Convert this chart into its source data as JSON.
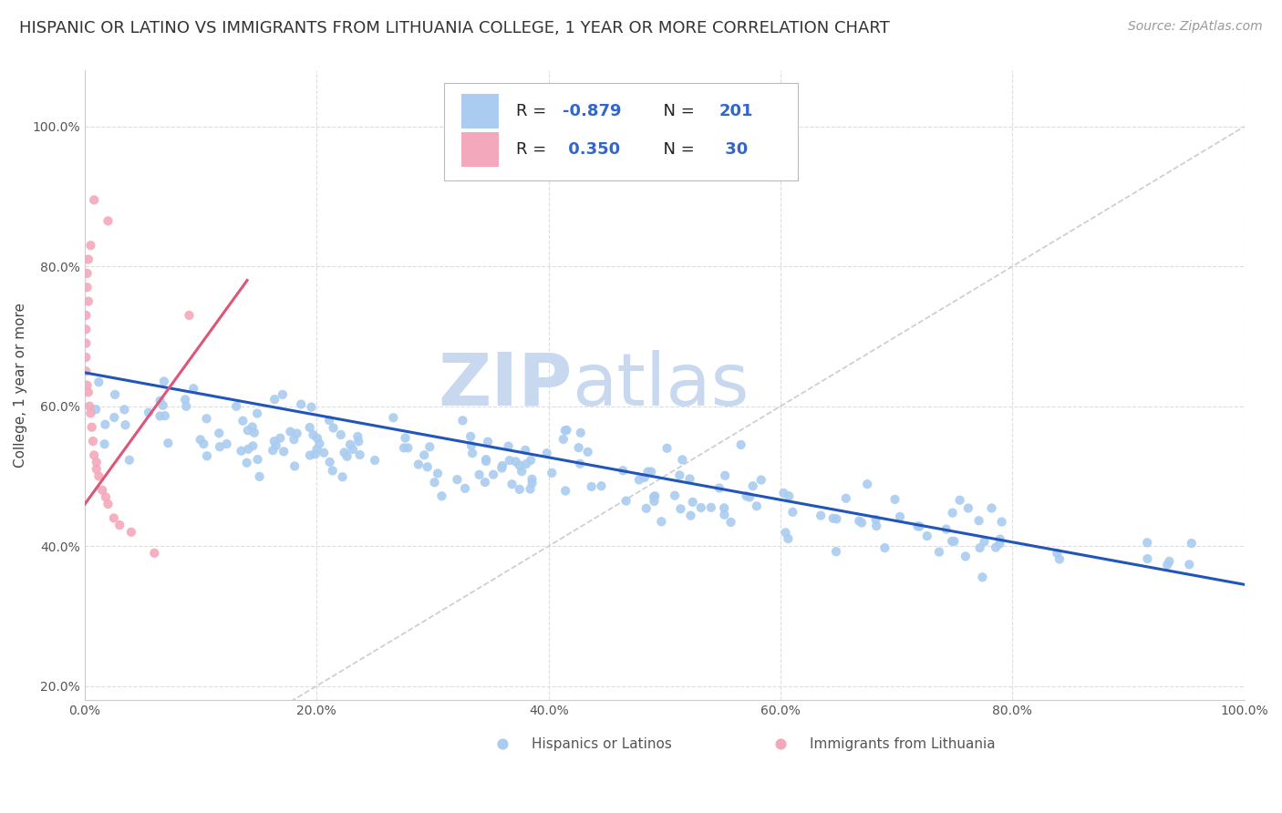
{
  "title": "HISPANIC OR LATINO VS IMMIGRANTS FROM LITHUANIA COLLEGE, 1 YEAR OR MORE CORRELATION CHART",
  "source": "Source: ZipAtlas.com",
  "ylabel": "College, 1 year or more",
  "xlim": [
    0,
    1
  ],
  "ylim": [
    0.18,
    1.08
  ],
  "x_ticks": [
    0.0,
    0.2,
    0.4,
    0.6,
    0.8,
    1.0
  ],
  "x_tick_labels": [
    "0.0%",
    "20.0%",
    "40.0%",
    "60.0%",
    "80.0%",
    "100.0%"
  ],
  "y_ticks": [
    0.2,
    0.4,
    0.6,
    0.8,
    1.0
  ],
  "y_tick_labels": [
    "20.0%",
    "40.0%",
    "60.0%",
    "80.0%",
    "100.0%"
  ],
  "blue_R": -0.879,
  "blue_N": 201,
  "pink_R": 0.35,
  "pink_N": 30,
  "blue_color": "#aaccf0",
  "pink_color": "#f4a8bc",
  "blue_line_color": "#2255bb",
  "pink_line_color": "#dd5577",
  "diagonal_color": "#cccccc",
  "grid_color": "#dddddd",
  "watermark_zip": "ZIP",
  "watermark_atlas": "atlas",
  "watermark_color": "#c8d8ee",
  "legend_label_blue": "Hispanics or Latinos",
  "legend_label_pink": "Immigrants from Lithuania",
  "title_fontsize": 13,
  "axis_label_fontsize": 11,
  "tick_fontsize": 10,
  "source_fontsize": 10,
  "blue_line_x0": 0.0,
  "blue_line_y0": 0.648,
  "blue_line_x1": 1.0,
  "blue_line_y1": 0.345,
  "pink_line_x0": 0.0,
  "pink_line_y0": 0.46,
  "pink_line_x1": 0.14,
  "pink_line_y1": 0.78
}
